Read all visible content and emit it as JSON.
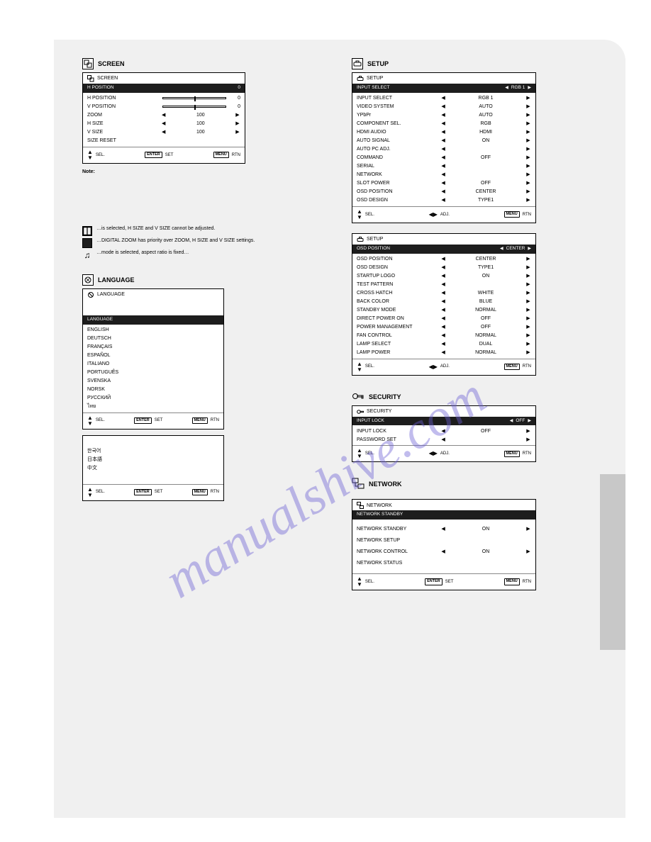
{
  "watermark": "manualshive.com",
  "sections": {
    "screen": {
      "heading": "SCREEN",
      "osd": {
        "title": "SCREEN",
        "header": {
          "left": "H POSITION",
          "right_num": "   0"
        },
        "rows": [
          {
            "k": "H POSITION",
            "type": "slider",
            "pos": 50,
            "num": "   0"
          },
          {
            "k": "V POSITION",
            "type": "slider",
            "pos": 50,
            "num": "   0"
          },
          {
            "k": "ZOOM",
            "type": "arrows",
            "v": "100"
          },
          {
            "k": "H SIZE",
            "type": "arrows",
            "v": "100"
          },
          {
            "k": "V SIZE",
            "type": "arrows",
            "v": "100"
          },
          {
            "k": "SIZE RESET",
            "type": "plain",
            "v": ""
          }
        ],
        "foot": {
          "sel": "SEL.",
          "adj": "SET",
          "rtn": "RTN"
        }
      },
      "notes_title": "Note:",
      "notes": [
        {
          "icon": "split",
          "text": "…is selected, H SIZE and V SIZE cannot be adjusted."
        },
        {
          "icon": "fill",
          "text": "…DIGITAL ZOOM has priority over ZOOM, H SIZE and V SIZE settings."
        },
        {
          "icon": "music",
          "text": "…mode is selected, aspect ratio is fixed…"
        }
      ]
    },
    "language": {
      "heading": "LANGUAGE",
      "osd1": {
        "title": "LANGUAGE",
        "header": {
          "left": "LANGUAGE",
          "right": ""
        },
        "items": [
          "ENGLISH",
          "DEUTSCH",
          "FRANÇAIS",
          "ESPAÑOL",
          "ITALIANO",
          "PORTUGUÊS",
          "SVENSKA",
          "NORSK",
          "РУССКИЙ",
          "ไทย"
        ],
        "foot": {
          "sel": "SEL.",
          "adj": "SET",
          "rtn": "RTN"
        }
      },
      "osd2": {
        "items": [
          "한국어",
          "日本語",
          "中文"
        ],
        "foot": {
          "sel": "SEL.",
          "adj": "SET",
          "rtn": "RTN"
        }
      }
    },
    "setup": {
      "heading": "SETUP",
      "osd1": {
        "title": "SETUP",
        "header": {
          "left": "INPUT SELECT",
          "right": "RGB 1"
        },
        "rows": [
          {
            "k": "INPUT SELECT",
            "v": "RGB 1"
          },
          {
            "k": "VIDEO SYSTEM",
            "v": "AUTO"
          },
          {
            "k": "YPbPr",
            "v": "AUTO"
          },
          {
            "k": "COMPONENT SEL.",
            "v": "RGB"
          },
          {
            "k": "HDMI AUDIO",
            "v": "HDMI"
          },
          {
            "k": "AUTO SIGNAL",
            "v": "ON"
          },
          {
            "k": "AUTO PC ADJ.",
            "v": ""
          },
          {
            "k": "COMMAND",
            "v": "OFF"
          },
          {
            "k": "SERIAL",
            "v": ""
          },
          {
            "k": "NETWORK",
            "v": ""
          },
          {
            "k": "SLOT POWER",
            "v": "OFF"
          },
          {
            "k": "OSD POSITION",
            "v": "CENTER"
          },
          {
            "k": "OSD DESIGN",
            "v": "TYPE1"
          }
        ],
        "foot": {
          "sel": "SEL.",
          "adj": "ADJ.",
          "rtn": "RTN"
        }
      },
      "osd2": {
        "title": "SETUP",
        "header": {
          "left": "OSD POSITION",
          "right": "CENTER"
        },
        "rows": [
          {
            "k": "OSD POSITION",
            "v": "CENTER"
          },
          {
            "k": "OSD DESIGN",
            "v": "TYPE1"
          },
          {
            "k": "STARTUP LOGO",
            "v": "ON"
          },
          {
            "k": "TEST PATTERN",
            "v": ""
          },
          {
            "k": "CROSS HATCH",
            "v": "WHITE"
          },
          {
            "k": "BACK COLOR",
            "v": "BLUE"
          },
          {
            "k": "STANDBY MODE",
            "v": "NORMAL"
          },
          {
            "k": "DIRECT POWER ON",
            "v": "OFF"
          },
          {
            "k": "POWER MANAGEMENT",
            "v": "OFF"
          },
          {
            "k": "FAN CONTROL",
            "v": "NORMAL"
          },
          {
            "k": "LAMP SELECT",
            "v": "DUAL"
          },
          {
            "k": "LAMP POWER",
            "v": "NORMAL"
          }
        ],
        "foot": {
          "sel": "SEL.",
          "adj": "ADJ.",
          "rtn": "RTN"
        }
      }
    },
    "security": {
      "heading": "SECURITY",
      "osd": {
        "title": "SECURITY",
        "header": {
          "left": "INPUT LOCK",
          "right": "OFF"
        },
        "rows": [
          {
            "k": "INPUT LOCK",
            "v": "OFF"
          },
          {
            "k": "PASSWORD SET",
            "v": ""
          }
        ],
        "foot": {
          "sel": "SEL.",
          "adj": "ADJ.",
          "rtn": "RTN"
        }
      }
    },
    "network": {
      "heading": "NETWORK",
      "osd": {
        "title": "NETWORK",
        "header": {
          "left": "NETWORK STANDBY",
          "right": ""
        },
        "rows": [
          {
            "k": "NETWORK STANDBY",
            "type": "arrows",
            "v": "ON"
          },
          {
            "k": "NETWORK SETUP",
            "type": "plain",
            "v": ""
          },
          {
            "k": "NETWORK CONTROL",
            "type": "arrows",
            "v": "ON"
          },
          {
            "k": "NETWORK STATUS",
            "type": "plain",
            "v": ""
          }
        ],
        "foot": {
          "sel": "SEL.",
          "adj": "SET",
          "rtn": "RTN"
        }
      }
    }
  },
  "labels": {
    "enter_btn": "ENTER",
    "menu_btn": "MENU"
  }
}
